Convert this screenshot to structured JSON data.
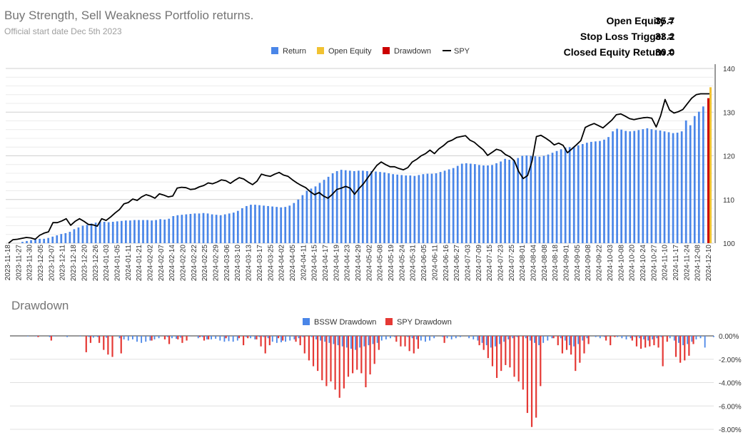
{
  "header": {
    "title": "Buy Strength, Sell Weakness Portfolio returns.",
    "subtitle": "Official start date Dec 5th 2023",
    "stats": [
      {
        "label": "Open Equity =",
        "value": "35.7"
      },
      {
        "label": "Stop Loss Trigger =",
        "value": "33.2"
      },
      {
        "label": "Closed Equity Return =",
        "value": "30.0"
      }
    ]
  },
  "colors": {
    "return": "#4a86e8",
    "open_equity": "#f1c232",
    "drawdown": "#cc0000",
    "spy": "#000000",
    "spy_drawdown": "#e53935"
  },
  "chart_data": [
    {
      "type": "bar",
      "title": "",
      "xlabel": "",
      "ylabel": "",
      "ylim": [
        100,
        140
      ],
      "yticks": [
        "100",
        "110",
        "120",
        "130",
        "140"
      ],
      "legend_position": "top",
      "legend": [
        "Return",
        "Open Equity",
        "Drawdown",
        "SPY"
      ],
      "x_tick_labels": [
        "2023-11-18",
        "2023-11-27",
        "2023-11-30",
        "2023-12-05",
        "2023-12-07",
        "2023-12-11",
        "2023-12-18",
        "2023-12-20",
        "2023-12-26",
        "2024-01-03",
        "2024-01-05",
        "2024-01-11",
        "2024-01-21",
        "2024-02-02",
        "2024-02-07",
        "2024-02-14",
        "2024-02-20",
        "2024-02-22",
        "2024-02-25",
        "2024-02-29",
        "2024-03-06",
        "2024-03-10",
        "2024-03-13",
        "2024-03-17",
        "2024-03-25",
        "2024-04-02",
        "2024-04-05",
        "2024-04-11",
        "2024-04-15",
        "2024-04-17",
        "2024-04-19",
        "2024-04-23",
        "2024-04-29",
        "2024-05-02",
        "2024-05-08",
        "2024-05-19",
        "2024-05-24",
        "2024-05-31",
        "2024-06-05",
        "2024-06-11",
        "2024-06-16",
        "2024-06-27",
        "2024-07-03",
        "2024-07-09",
        "2024-07-15",
        "2024-07-23",
        "2024-07-25",
        "2024-08-01",
        "2024-08-04",
        "2024-08-08",
        "2024-08-18",
        "2024-09-01",
        "2024-09-05",
        "2024-09-08",
        "2024-09-22",
        "2024-10-03",
        "2024-10-08",
        "2024-10-20",
        "2024-10-24",
        "2024-10-27",
        "2024-11-10",
        "2024-11-17",
        "2024-11-24",
        "2024-12-08",
        "2024-12-10"
      ],
      "series": [
        {
          "name": "Return",
          "values": [
            100,
            100,
            100,
            100.3,
            100.5,
            100.7,
            100.9,
            101,
            101,
            101.2,
            101.5,
            101.8,
            102.1,
            102.3,
            102.6,
            103.2,
            103.6,
            104,
            104.2,
            104.5,
            104.7,
            104.9,
            104.9,
            104.8,
            104.9,
            105,
            105.1,
            105.2,
            105.2,
            105.3,
            105.3,
            105.3,
            105.3,
            105.2,
            105.3,
            105.5,
            105.4,
            105.6,
            106.2,
            106.4,
            106.5,
            106.6,
            106.7,
            106.8,
            106.8,
            106.9,
            106.8,
            106.6,
            106.5,
            106.4,
            106.6,
            106.8,
            107,
            107.4,
            108,
            108.5,
            108.8,
            108.8,
            108.7,
            108.6,
            108.5,
            108.4,
            108.3,
            108.2,
            108.3,
            108.6,
            109.2,
            110,
            111,
            112,
            112.5,
            113,
            113.8,
            114.5,
            115.2,
            116,
            116.5,
            116.8,
            116.7,
            116.6,
            116.5,
            116.6,
            116.6,
            116.5,
            116.5,
            116.4,
            116.3,
            116.2,
            116,
            115.8,
            115.7,
            115.6,
            115.5,
            115.5,
            115.4,
            115.6,
            115.8,
            115.9,
            115.9,
            116,
            116.3,
            116.6,
            116.9,
            117.2,
            117.7,
            118.2,
            118.3,
            118.2,
            118.1,
            117.9,
            117.8,
            117.8,
            117.9,
            118.3,
            118.7,
            119.3,
            119.1,
            119,
            119.5,
            120,
            120.1,
            120,
            119.9,
            119.8,
            120,
            120.3,
            120.7,
            121.1,
            121.5,
            121.9,
            122,
            122.1,
            122.4,
            122.7,
            123,
            123.2,
            123.3,
            123.4,
            123.7,
            124.3,
            125.6,
            126.2,
            126,
            125.7,
            125.6,
            125.7,
            125.9,
            126.1,
            126.3,
            126.1,
            125.9,
            125.8,
            125.6,
            125.4,
            125.2,
            125.3,
            125.6,
            128.1,
            127,
            129.1,
            130.1,
            131.3
          ]
        },
        {
          "name": "Open Equity",
          "values": [
            135.7
          ]
        },
        {
          "name": "Drawdown",
          "values": [
            133.2
          ]
        },
        {
          "name": "SPY",
          "values": [
            100,
            100.8,
            100.9,
            101.1,
            101.3,
            101.2,
            100.9,
            101.8,
            102.3,
            102.6,
            104.7,
            104.7,
            105.1,
            105.6,
            104.1,
            105,
            105.6,
            105,
            104.3,
            104.2,
            103.9,
            105.6,
            105.2,
            106,
            106.9,
            107.7,
            109,
            109.3,
            110.1,
            109.8,
            110.6,
            111.1,
            110.8,
            110.3,
            111.3,
            111,
            110.6,
            110.8,
            112.6,
            112.8,
            112.7,
            112.3,
            112.4,
            112.9,
            113.2,
            113.8,
            113.6,
            114,
            114.5,
            114.3,
            113.7,
            114.4,
            115,
            114.7,
            114,
            113.4,
            114.2,
            115.8,
            115.5,
            115.3,
            115.8,
            116.2,
            115.6,
            115.3,
            114.5,
            113.8,
            113.2,
            112.7,
            111.8,
            111.1,
            111.6,
            110.8,
            110.3,
            111.2,
            112.3,
            112.6,
            113,
            112.6,
            111.2,
            112.5,
            113.6,
            115,
            116.4,
            117.8,
            118.6,
            118,
            117.5,
            117.5,
            117.1,
            116.8,
            117.3,
            118.6,
            119.2,
            120,
            120.5,
            121.3,
            120.5,
            121.6,
            122.3,
            123.2,
            123.6,
            124.2,
            124.4,
            124.6,
            123.6,
            123.1,
            122.2,
            121.4,
            120.1,
            120.8,
            121.5,
            121.2,
            120.3,
            119.8,
            118.9,
            116.4,
            114.8,
            115.5,
            118.8,
            124.4,
            124.7,
            124.1,
            123.4,
            122.5,
            122.9,
            122.4,
            120.7,
            121.6,
            122.5,
            123.5,
            126.5,
            127,
            127.4,
            126.9,
            126.4,
            127.3,
            128.2,
            129.4,
            129.6,
            129.1,
            128.5,
            128.3,
            128.5,
            128.7,
            128.8,
            128.6,
            126.6,
            129.2,
            132.9,
            130.5,
            129.8,
            130.1,
            130.6,
            131.9,
            133.2,
            134,
            134.2,
            134.2,
            134.2
          ]
        }
      ]
    },
    {
      "type": "bar",
      "title": "Drawdown",
      "xlabel": "",
      "ylabel": "",
      "ylim": [
        -8,
        0
      ],
      "yticks": [
        "0.00%",
        "-2.00%",
        "-4.00%",
        "-6.00%",
        "-8.00%"
      ],
      "legend_position": "top",
      "series": [
        {
          "name": "BSSW Drawdown",
          "values": [
            0,
            -0.05,
            0,
            -0.05,
            0,
            0,
            -0.1,
            -0.05,
            0,
            0,
            -0.1,
            0,
            0,
            -0.05,
            0,
            -0.1,
            -0.15,
            -0.1,
            0,
            -0.15,
            0,
            0,
            -0.2,
            -0.3,
            -0.4,
            -0.3,
            -0.5,
            -0.6,
            -0.5,
            -0.4,
            -0.3,
            -0.2,
            0,
            -0.1,
            -0.2,
            -0.25,
            -0.15,
            0,
            -0.05,
            0,
            -0.2,
            -0.1,
            -0.3,
            -0.3,
            -0.25,
            -0.4,
            -0.5,
            -0.45,
            -0.5,
            -0.4,
            0,
            -0.1,
            -0.2,
            -0.3,
            -0.1,
            -0.1,
            -0.2,
            -0.5,
            -0.6,
            -0.55,
            -0.5,
            -0.4,
            -0.3,
            -0.2,
            -0.1,
            0,
            -0.1,
            -0.3,
            -0.4,
            -0.5,
            -0.6,
            -0.7,
            -0.8,
            -0.9,
            -1,
            -1.1,
            -1.2,
            -1,
            -0.9,
            -0.8,
            -0.7,
            -0.6,
            -0.4,
            -0.3,
            -0.2,
            -0.1,
            0,
            0,
            -0.1,
            -0.2,
            -0.3,
            -0.4,
            -0.5,
            -0.4,
            -0.2,
            0,
            -0.1,
            -0.2,
            -0.3,
            -0.2,
            -0.1,
            0,
            -0.2,
            -0.3,
            -0.4,
            -0.6,
            -0.8,
            -1,
            -0.9,
            -0.7,
            -0.5,
            -0.3,
            -0.2,
            -0.1,
            0,
            -0.2,
            -0.4,
            -0.6,
            -0.8,
            -0.6,
            -0.4,
            -0.2,
            0,
            -0.2,
            -0.4,
            -0.8,
            -0.9,
            -0.7,
            -0.4,
            -0.2,
            0,
            -0.1,
            -0.2,
            -0.1,
            0,
            0,
            -0.1,
            -0.2,
            -0.3,
            -0.2,
            -0.1,
            -0.2,
            -0.3,
            -0.4,
            -0.3,
            -0.2,
            -0.1,
            0,
            -0.2,
            -0.4,
            -0.6,
            -0.8,
            -0.7,
            -0.5,
            -0.3,
            -0.2,
            -1,
            0,
            -0.1
          ]
        },
        {
          "name": "SPY Drawdown",
          "values": [
            0,
            0,
            0,
            -0.1,
            0,
            0,
            -0.4,
            0,
            0,
            0,
            0,
            0,
            0,
            0,
            -1.4,
            -0.6,
            0,
            -0.6,
            -1.2,
            -1.6,
            -1.8,
            0,
            -1.5,
            0,
            0,
            0,
            0,
            0,
            0,
            -0.4,
            0,
            0,
            -0.3,
            -0.7,
            0,
            -0.3,
            -0.6,
            -0.4,
            0,
            0,
            -0.1,
            -0.4,
            -0.3,
            0,
            0,
            0,
            -0.2,
            0,
            0,
            -0.2,
            -0.8,
            -0.2,
            0,
            -0.3,
            -0.9,
            -1.5,
            -0.8,
            0,
            -0.2,
            -0.4,
            0,
            0,
            -0.5,
            -0.8,
            -1.5,
            -2.1,
            -2.6,
            -3,
            -3.8,
            -4.3,
            -3.9,
            -4.6,
            -5.3,
            -4.5,
            -3.5,
            -3.2,
            -2.9,
            -3.2,
            -4.4,
            -3.3,
            -2.4,
            -1.2,
            0,
            0,
            0,
            -0.5,
            -0.9,
            -0.9,
            -1.3,
            -1.5,
            -1.1,
            0,
            0,
            0,
            0,
            0,
            -0.6,
            0,
            0,
            0,
            0,
            0,
            0,
            0,
            -0.8,
            -1.2,
            -1.9,
            -2.6,
            -3.6,
            -3,
            -2.5,
            -2.7,
            -3.5,
            -3.9,
            -4.6,
            -6.6,
            -7.8,
            -7.0,
            -4.3,
            0,
            0,
            -0.2,
            -0.8,
            -1.5,
            -1.2,
            -1.6,
            -3,
            -2.3,
            -1.5,
            -0.7,
            0,
            0,
            0,
            -0.4,
            -0.8,
            -0.1,
            0,
            0,
            0,
            -0.4,
            -0.9,
            -1.1,
            -1,
            -0.9,
            -0.8,
            -1,
            -2.6,
            -0.5,
            0,
            -1.8,
            -2.3,
            -2.1,
            -1.7,
            -0.7,
            0,
            0,
            0,
            0,
            0
          ]
        }
      ]
    }
  ]
}
